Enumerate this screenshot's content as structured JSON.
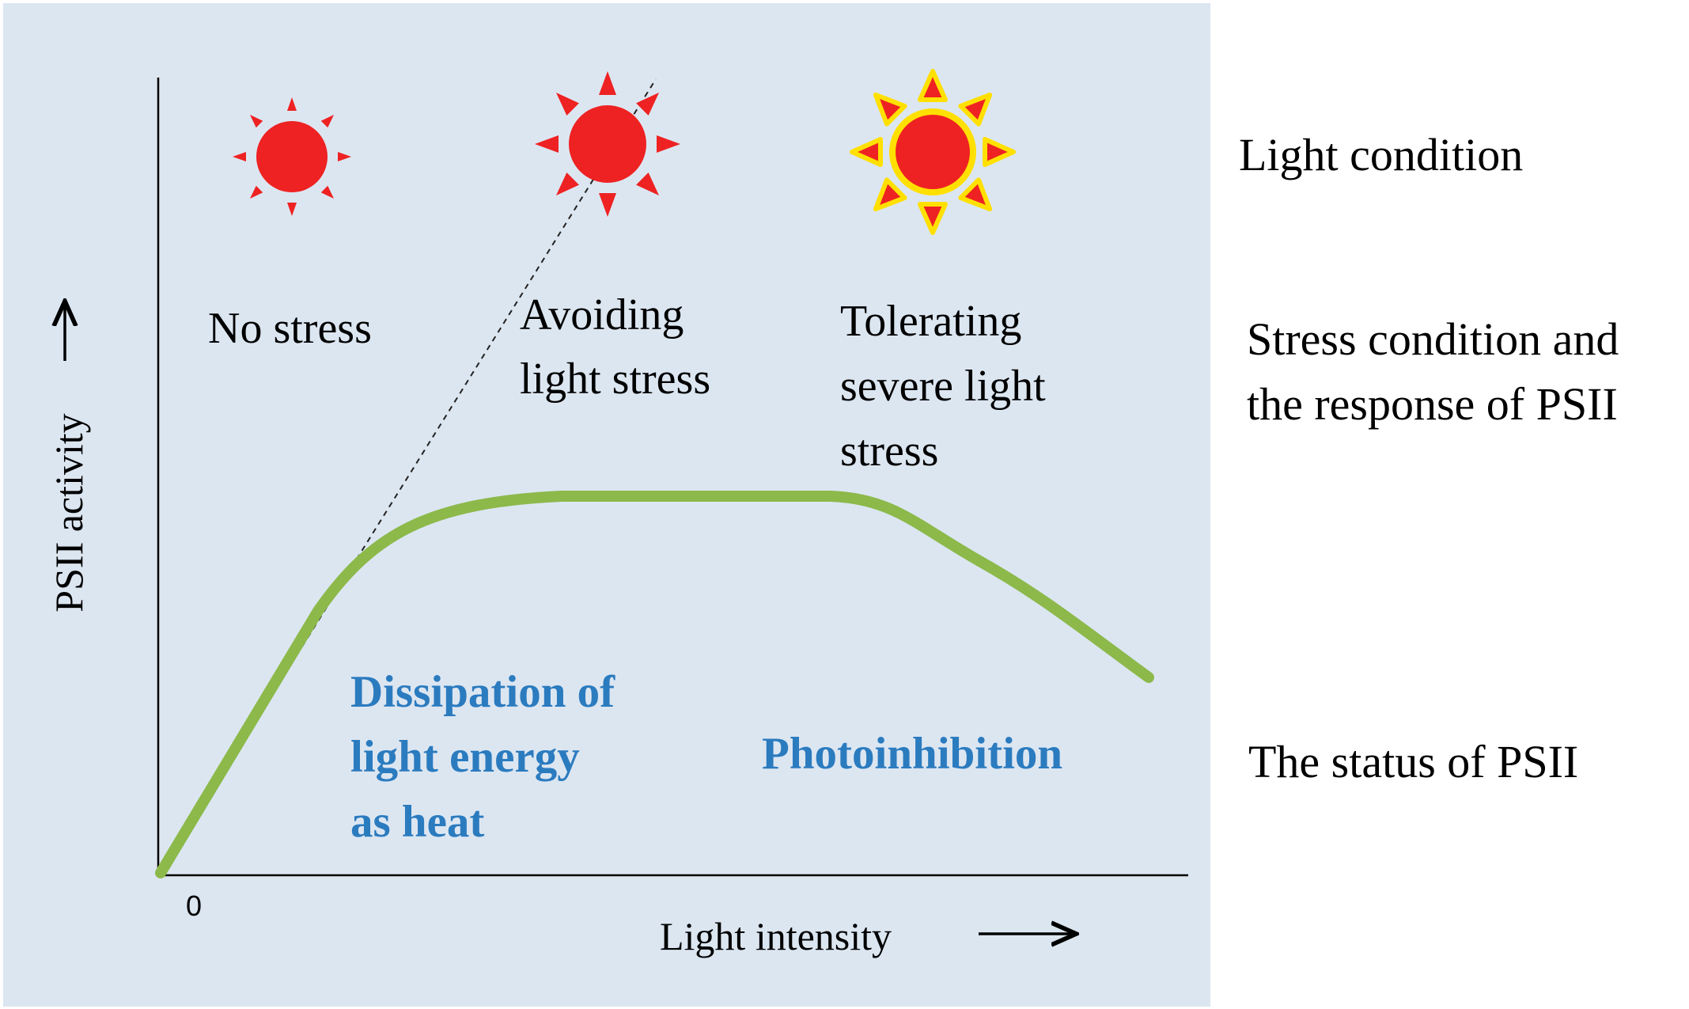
{
  "colors": {
    "panel_background": "#dce6f1",
    "curve": "#8cb94a",
    "sun_fill": "#ee2222",
    "sun_glow": "#ffe000",
    "status_text": "#2b7bbf",
    "text": "#000000"
  },
  "axes": {
    "y_label": "PSII activity",
    "x_label": "Light intensity",
    "origin_label": "0"
  },
  "zones": [
    {
      "id": "no-stress",
      "sun_icon": "small-sun-icon",
      "stress_lines": [
        "No stress"
      ],
      "status_lines": []
    },
    {
      "id": "avoiding",
      "sun_icon": "medium-sun-icon",
      "stress_lines": [
        "Avoiding",
        "light stress"
      ],
      "status_lines": [
        "Dissipation of",
        "light energy",
        "as heat"
      ]
    },
    {
      "id": "tolerating",
      "sun_icon": "glowing-sun-icon",
      "stress_lines": [
        "Tolerating",
        "severe light",
        "stress"
      ],
      "status_lines": [
        "Photoinhibition"
      ]
    }
  ],
  "row_labels": {
    "light_condition": "Light condition",
    "stress_response": [
      "Stress condition and",
      "the response of PSII"
    ],
    "psii_status": "The status of PSII"
  }
}
